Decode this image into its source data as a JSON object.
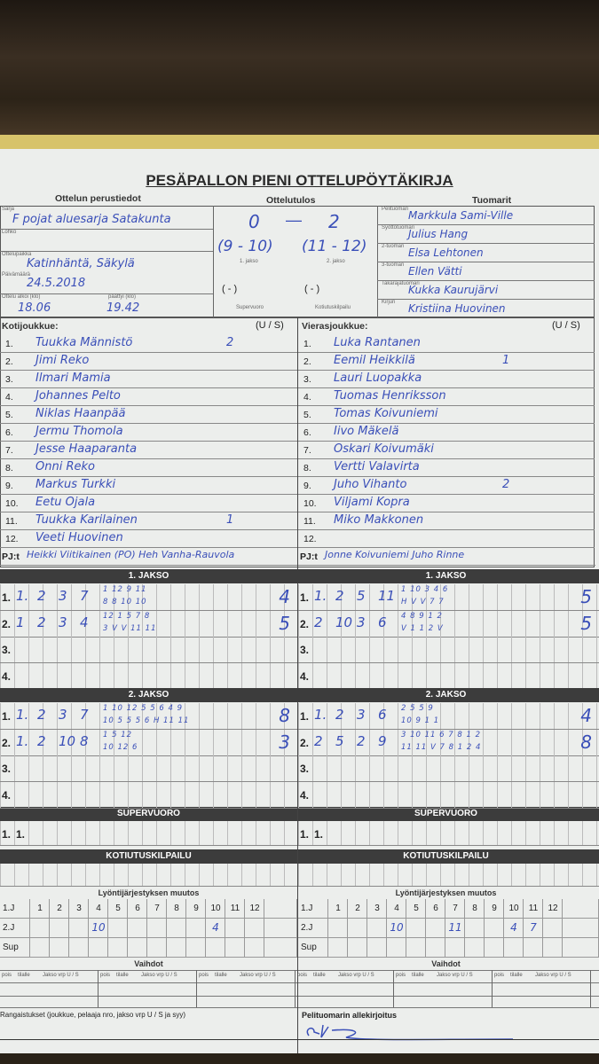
{
  "title": "PESÄPALLON PIENI OTTELUPÖYTÄKIRJA",
  "sections": {
    "basics": "Ottelun perustiedot",
    "result": "Ottelutulos",
    "referees": "Tuomarit"
  },
  "basics": {
    "series_label": "Sarja",
    "series": "F pojat aluesarja Satakunta",
    "block_label": "Lohko",
    "block": "",
    "venue_label": "Ottelupaikka",
    "venue": "Katinhäntä, Säkylä",
    "date_label": "Päivämäärä",
    "date": "24.5.2018",
    "start_label": "Ottelu alkoi (klo)",
    "start": "18.06",
    "end_label": "päättyi (klo)",
    "end": "19.42"
  },
  "result": {
    "home": "0",
    "away": "2",
    "period1": "(9 - 10)",
    "period1_label": "1. jakso",
    "period2": "(11 - 12)",
    "period2_label": "2. jakso",
    "super": "(  -  )",
    "super_label": "Supervuoro",
    "homerun": "(  -  )",
    "homerun_label": "Kotiutuskilpailu"
  },
  "referees": [
    {
      "label": "Pelituomari",
      "name": "Markkula Sami-Ville"
    },
    {
      "label": "Syöttötuomari",
      "name": "Julius Hang"
    },
    {
      "label": "2-tuomari",
      "name": "Elsa Lehtonen"
    },
    {
      "label": "3-tuomari",
      "name": "Ellen Vätti"
    },
    {
      "label": "Takarajatuomari",
      "name": "Kukka Kaurujärvi"
    },
    {
      "label": "Kirjuri",
      "name": "Kristiina Huovinen"
    }
  ],
  "home": {
    "label": "Kotijoukkue:",
    "us_label": "(U / S)",
    "players": [
      {
        "no": "1.",
        "name": "Tuukka Männistö",
        "us": "2"
      },
      {
        "no": "2.",
        "name": "Jimi Reko",
        "us": ""
      },
      {
        "no": "3.",
        "name": "Ilmari Mamia",
        "us": ""
      },
      {
        "no": "4.",
        "name": "Johannes Pelto",
        "us": ""
      },
      {
        "no": "5.",
        "name": "Niklas Haanpää",
        "us": ""
      },
      {
        "no": "6.",
        "name": "Jermu Thomola",
        "us": ""
      },
      {
        "no": "7.",
        "name": "Jesse Haaparanta",
        "us": ""
      },
      {
        "no": "8.",
        "name": "Onni Reko",
        "us": ""
      },
      {
        "no": "9.",
        "name": "Markus Turkki",
        "us": ""
      },
      {
        "no": "10.",
        "name": "Eetu Ojala",
        "us": ""
      },
      {
        "no": "11.",
        "name": "Tuukka Karilainen",
        "us": "1"
      },
      {
        "no": "12.",
        "name": "Veeti Huovinen",
        "us": ""
      }
    ],
    "pj_label": "PJ:t",
    "pj": "Heikki Viitikainen (PO) Heh Vanha-Rauvola"
  },
  "away": {
    "label": "Vierasjoukkue:",
    "us_label": "(U / S)",
    "players": [
      {
        "no": "1.",
        "name": "Luka Rantanen",
        "us": ""
      },
      {
        "no": "2.",
        "name": "Eemil Heikkilä",
        "us": "1"
      },
      {
        "no": "3.",
        "name": "Lauri Luopakka",
        "us": ""
      },
      {
        "no": "4.",
        "name": "Tuomas Henriksson",
        "us": ""
      },
      {
        "no": "5.",
        "name": "Tomas Koivuniemi",
        "us": ""
      },
      {
        "no": "6.",
        "name": "Iivo Mäkelä",
        "us": ""
      },
      {
        "no": "7.",
        "name": "Oskari Koivumäki",
        "us": ""
      },
      {
        "no": "8.",
        "name": "Vertti Valavirta",
        "us": ""
      },
      {
        "no": "9.",
        "name": "Juho Vihanto",
        "us": "2"
      },
      {
        "no": "10.",
        "name": "Viljami Kopra",
        "us": ""
      },
      {
        "no": "11.",
        "name": "Miko Makkonen",
        "us": ""
      },
      {
        "no": "12.",
        "name": "",
        "us": ""
      }
    ],
    "pj_label": "PJ:t",
    "pj": "Jonne Koivuniemi Juho Rinne"
  },
  "periods": [
    {
      "title": "1. JAKSO",
      "home": [
        {
          "no": "1.",
          "b": [
            "1.",
            "2",
            "3",
            "7"
          ],
          "top": "1 12 9 11",
          "bot": "8 8 10 10",
          "runs": "4"
        },
        {
          "no": "2.",
          "b": [
            "1",
            "2",
            "3",
            "4"
          ],
          "top": "12 1 5 7 8",
          "bot": "3 V V 11 11",
          "runs": "5"
        },
        {
          "no": "3.",
          "b": [],
          "top": "",
          "bot": "",
          "runs": ""
        },
        {
          "no": "4.",
          "b": [],
          "top": "",
          "bot": "",
          "runs": ""
        }
      ],
      "away": [
        {
          "no": "1.",
          "b": [
            "1.",
            "2",
            "5",
            "11"
          ],
          "top": "1 10 3 4 6",
          "bot": "H V V 7 7",
          "runs": "5"
        },
        {
          "no": "2.",
          "b": [
            "2",
            "10",
            "3",
            "6"
          ],
          "top": "4 8 9 1 2",
          "bot": "V 1 1 2 V",
          "runs": "5"
        },
        {
          "no": "3.",
          "b": [],
          "top": "",
          "bot": "",
          "runs": ""
        },
        {
          "no": "4.",
          "b": [],
          "top": "",
          "bot": "",
          "runs": ""
        }
      ]
    },
    {
      "title": "2. JAKSO",
      "home": [
        {
          "no": "1.",
          "b": [
            "1.",
            "2",
            "3",
            "7"
          ],
          "top": "1 10 12 5 5 6 4 9",
          "bot": "10 5 5 5 6 H 11 11",
          "runs": "8"
        },
        {
          "no": "2.",
          "b": [
            "1.",
            "2",
            "10",
            "8"
          ],
          "top": "1 5 12",
          "bot": "10 12 6",
          "runs": "3"
        },
        {
          "no": "3.",
          "b": [],
          "top": "",
          "bot": "",
          "runs": ""
        },
        {
          "no": "4.",
          "b": [],
          "top": "",
          "bot": "",
          "runs": ""
        }
      ],
      "away": [
        {
          "no": "1.",
          "b": [
            "1.",
            "2",
            "3",
            "6"
          ],
          "top": "2 5 5 9",
          "bot": "10 9 1 1",
          "runs": "4"
        },
        {
          "no": "2.",
          "b": [
            "2",
            "5",
            "2",
            "9"
          ],
          "top": "3 10 11 6 7 8 1 2",
          "bot": "11 11 V 7 8 1 2 4",
          "runs": "8"
        },
        {
          "no": "3.",
          "b": [],
          "top": "",
          "bot": "",
          "runs": ""
        },
        {
          "no": "4.",
          "b": [],
          "top": "",
          "bot": "",
          "runs": ""
        }
      ]
    }
  ],
  "supervuoro": {
    "title": "SUPERVUORO",
    "home": {
      "no": "1.",
      "b": [
        "1."
      ]
    },
    "away": {
      "no": "1.",
      "b": [
        "1."
      ]
    }
  },
  "kotiutus": {
    "title": "KOTIUTUSKILPAILU"
  },
  "lineup_change": {
    "title": "Lyöntijärjestyksen muutos",
    "columns": [
      "1",
      "2",
      "3",
      "4",
      "5",
      "6",
      "7",
      "8",
      "9",
      "10",
      "11",
      "12"
    ],
    "rows": [
      "1.J",
      "2.J",
      "Sup"
    ],
    "home": {
      "2.J": [
        "",
        "",
        "",
        "10",
        "",
        "",
        "",
        "",
        "",
        "4",
        "",
        ""
      ]
    },
    "away": {
      "2.J": [
        "",
        "",
        "",
        "10",
        "",
        "",
        "11",
        "",
        "",
        "4",
        "7",
        ""
      ]
    }
  },
  "substitutions": {
    "title": "Vaihdot",
    "cols": [
      "pois",
      "tilalle",
      "Jakso vrp U / S"
    ]
  },
  "penalties_label": "Rangaistukset (joukkue, pelaaja nro, jakso vrp U / S ja syy)",
  "signature_label": "Pelituomarin allekirjoitus",
  "colors": {
    "ink": "#3a4fb8",
    "bar": "#3c3c3c",
    "paper": "#eceeec"
  }
}
